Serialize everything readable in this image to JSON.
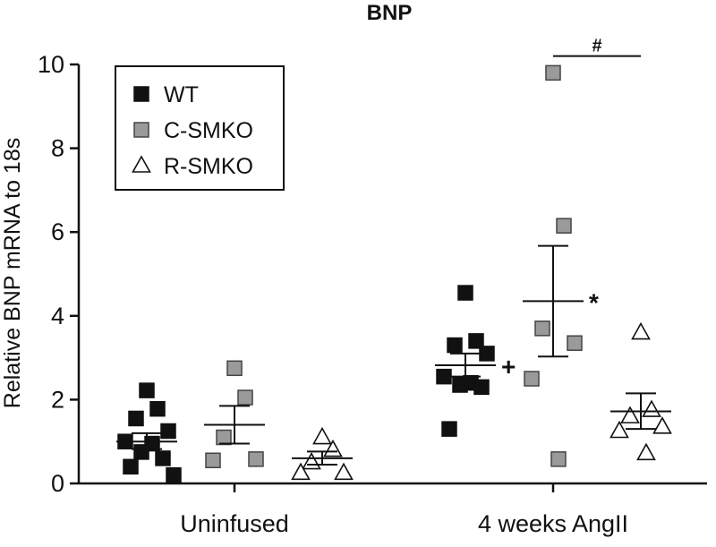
{
  "chart_data": {
    "type": "scatter",
    "title": "BNP",
    "ylabel": "Relative BNP mRNA to 18s",
    "xlabel": "",
    "ylim": [
      0,
      10
    ],
    "yticks": [
      0,
      2,
      4,
      6,
      8,
      10
    ],
    "categories": [
      "Uninfused",
      "4 weeks AngII"
    ],
    "series": [
      {
        "name": "WT",
        "marker": "square",
        "color": "#111111",
        "groups": [
          {
            "category": "Uninfused",
            "values": [
              2.22,
              1.78,
              1.55,
              1.25,
              1.0,
              0.95,
              0.75,
              0.6,
              0.4,
              0.2
            ],
            "mean": 1.0,
            "sem_low": 0.82,
            "sem_high": 1.2
          },
          {
            "category": "4 weeks AngII",
            "values": [
              4.55,
              3.4,
              3.3,
              3.1,
              2.55,
              2.4,
              2.35,
              2.3,
              1.3
            ],
            "mean": 2.82,
            "sem_low": 2.55,
            "sem_high": 3.1
          }
        ]
      },
      {
        "name": "C-SMKO",
        "marker": "square",
        "color": "#9a9a9a",
        "groups": [
          {
            "category": "Uninfused",
            "values": [
              2.75,
              2.05,
              1.1,
              0.58,
              0.55
            ],
            "mean": 1.4,
            "sem_low": 0.95,
            "sem_high": 1.85
          },
          {
            "category": "4 weeks AngII",
            "values": [
              9.8,
              6.15,
              3.7,
              3.35,
              2.5,
              0.58
            ],
            "mean": 4.35,
            "sem_low": 3.03,
            "sem_high": 5.67
          }
        ]
      },
      {
        "name": "R-SMKO",
        "marker": "triangle",
        "color": "#ffffff",
        "groups": [
          {
            "category": "Uninfused",
            "values": [
              1.1,
              0.8,
              0.5,
              0.25,
              0.25
            ],
            "mean": 0.6,
            "sem_low": 0.45,
            "sem_high": 0.76
          },
          {
            "category": "4 weeks AngII",
            "values": [
              3.6,
              1.75,
              1.6,
              1.35,
              1.25,
              0.72
            ],
            "mean": 1.72,
            "sem_low": 1.3,
            "sem_high": 2.15
          }
        ]
      }
    ],
    "legend": {
      "position": "top-left",
      "entries": [
        "WT",
        "C-SMKO",
        "R-SMKO"
      ]
    },
    "annotations": [
      {
        "text": "+",
        "series": "WT",
        "category": "4 weeks AngII"
      },
      {
        "text": "*",
        "series": "C-SMKO",
        "category": "4 weeks AngII"
      },
      {
        "text": "#",
        "bracket_series": [
          "C-SMKO",
          "R-SMKO"
        ],
        "category": "4 weeks AngII",
        "y": 10.2
      }
    ]
  }
}
